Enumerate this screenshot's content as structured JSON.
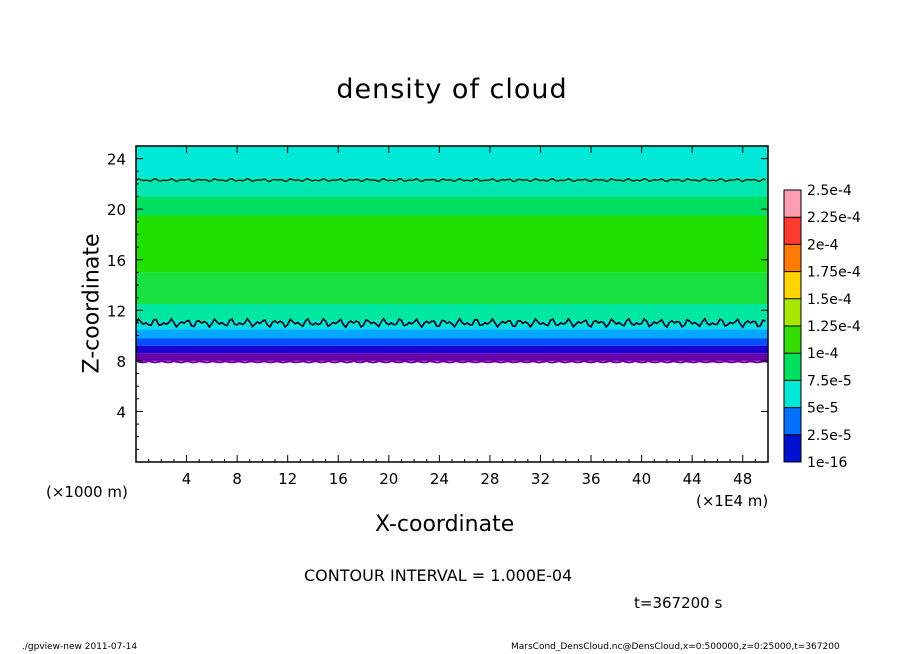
{
  "chart_data": {
    "type": "heatmap",
    "title": "density of cloud",
    "xlabel": "X-coordinate",
    "ylabel": "Z-coordinate",
    "x_unit_left": "(×1000 m)",
    "x_unit_right": "(×1E4 m)",
    "xlim": [
      0,
      50
    ],
    "ylim": [
      0,
      25
    ],
    "x_ticks": [
      "4",
      "8",
      "12",
      "16",
      "20",
      "24",
      "28",
      "32",
      "36",
      "40",
      "44",
      "48"
    ],
    "y_ticks": [
      "4",
      "8",
      "12",
      "16",
      "20",
      "24"
    ],
    "x_tick_values": [
      4,
      8,
      12,
      16,
      20,
      24,
      28,
      32,
      36,
      40,
      44,
      48
    ],
    "y_tick_values": [
      4,
      8,
      12,
      16,
      20,
      24
    ],
    "colorbar": {
      "labels": [
        "2.5e-4",
        "2.25e-4",
        "2e-4",
        "1.75e-4",
        "1.5e-4",
        "1.25e-4",
        "1e-4",
        "7.5e-5",
        "5e-5",
        "2.5e-5",
        "1e-16"
      ],
      "colors": [
        "#ff9db0",
        "#ff3b30",
        "#ff7a00",
        "#ffd400",
        "#a6e800",
        "#33dd00",
        "#00e060",
        "#00e8d8",
        "#0070ff",
        "#0010d0",
        "#7000a0"
      ]
    },
    "layers": [
      {
        "z_bottom": 8.0,
        "z_top": 8.6,
        "color": "#6a00a8"
      },
      {
        "z_bottom": 8.6,
        "z_top": 9.2,
        "color": "#1a00d0"
      },
      {
        "z_bottom": 9.2,
        "z_top": 9.8,
        "color": "#0050ff"
      },
      {
        "z_bottom": 9.8,
        "z_top": 10.5,
        "color": "#00a8ff"
      },
      {
        "z_bottom": 10.5,
        "z_top": 11.2,
        "color": "#00e0e0"
      },
      {
        "z_bottom": 11.2,
        "z_top": 12.5,
        "color": "#00e8a0"
      },
      {
        "z_bottom": 12.5,
        "z_top": 15.0,
        "color": "#18e040"
      },
      {
        "z_bottom": 15.0,
        "z_top": 19.5,
        "color": "#20e000"
      },
      {
        "z_bottom": 19.5,
        "z_top": 21.0,
        "color": "#00e060"
      },
      {
        "z_bottom": 21.0,
        "z_top": 22.5,
        "color": "#00e8b0"
      },
      {
        "z_bottom": 22.5,
        "z_top": 25.0,
        "color": "#00e8d8"
      }
    ],
    "contour_levels_z": [
      11.0,
      22.3
    ],
    "contour_interval": 0.0001
  },
  "contour_text": "CONTOUR INTERVAL = 1.000E-04",
  "time_text": "t=367200 s",
  "footer_left": "./gpview-new  2011-07-14",
  "footer_right": "MarsCond_DensCloud.nc@DensCloud,x=0:500000,z=0:25000,t=367200"
}
